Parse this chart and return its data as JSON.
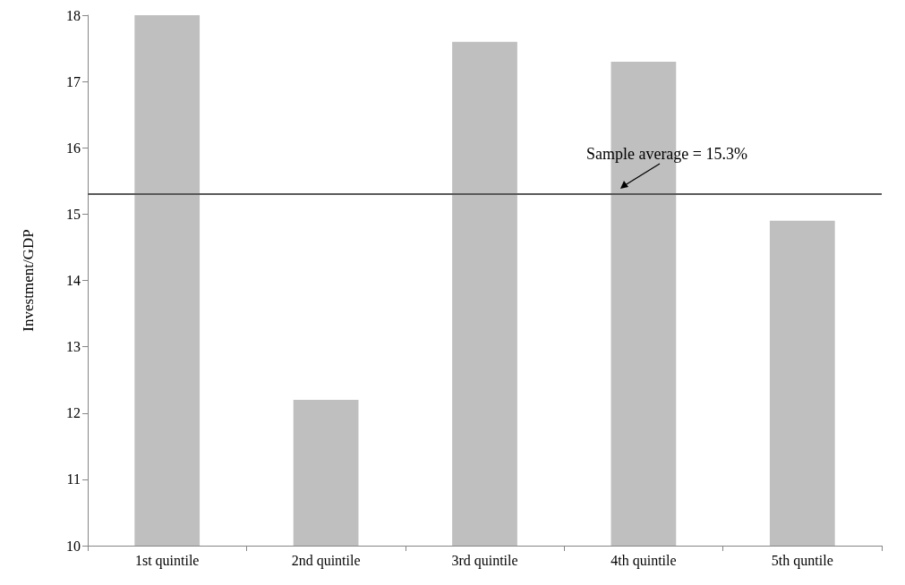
{
  "chart_data": {
    "type": "bar",
    "ylabel": "Investment/GDP",
    "categories": [
      "1st quintile",
      "2nd quintile",
      "3rd quintile",
      "4th quintile",
      "5th quntile"
    ],
    "values": [
      18.0,
      12.2,
      17.6,
      17.3,
      14.9
    ],
    "color": "#bfbfbf",
    "ylim": [
      10,
      18
    ],
    "yticks": [
      10,
      11,
      12,
      13,
      14,
      15,
      16,
      17,
      18
    ],
    "grid": false,
    "ref_lines": [
      {
        "axis": "y",
        "value": 15.3,
        "label": "Sample average = 15.3%",
        "color": "#595959"
      }
    ]
  }
}
